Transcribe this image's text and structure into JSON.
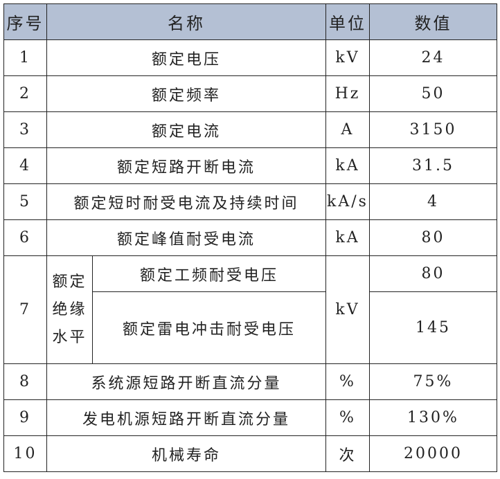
{
  "header": {
    "no": "序号",
    "name": "名称",
    "unit": "单位",
    "value": "数值"
  },
  "rows": [
    {
      "no": "1",
      "name": "额定电压",
      "unit": "kV",
      "value": "24"
    },
    {
      "no": "2",
      "name": "额定频率",
      "unit": "Hz",
      "value": "50"
    },
    {
      "no": "3",
      "name": "额定电流",
      "unit": "A",
      "value": "3150"
    },
    {
      "no": "4",
      "name": "额定短路开断电流",
      "unit": "kA",
      "value": "31.5"
    },
    {
      "no": "5",
      "name": "额定短时耐受电流及持续时间",
      "unit": "kA/s",
      "value": "4"
    },
    {
      "no": "6",
      "name": "额定峰值耐受电流",
      "unit": "kA",
      "value": "80"
    }
  ],
  "row7": {
    "no": "7",
    "group": [
      "额定",
      "绝缘",
      "水平"
    ],
    "unit": "kV",
    "sub": [
      {
        "name": "额定工频耐受电压",
        "value": "80"
      },
      {
        "name": "额定雷电冲击耐受电压",
        "value": "145"
      }
    ]
  },
  "rows2": [
    {
      "no": "8",
      "name": "系统源短路开断直流分量",
      "unit": "%",
      "value": "75%"
    },
    {
      "no": "9",
      "name": "发电机源短路开断直流分量",
      "unit": "%",
      "value": "130%"
    },
    {
      "no": "10",
      "name": "机械寿命",
      "unit": "次",
      "value": "20000"
    }
  ]
}
